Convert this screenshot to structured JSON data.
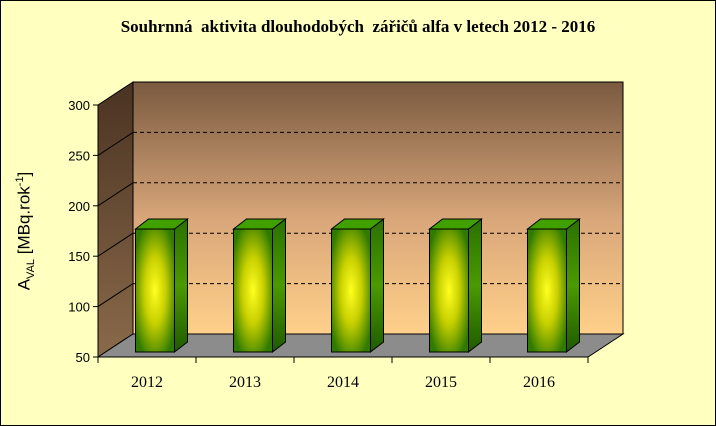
{
  "chart_data": {
    "type": "bar",
    "title": "Souhrnná  aktivita dlouhodobých  zářičů alfa v letech 2012 - 2016",
    "ylabel": {
      "base": "A",
      "sub": "VAL",
      "main": " [MBq.rok",
      "sup": "-1",
      "end": "]"
    },
    "xlabel": "",
    "categories": [
      "2012",
      "2013",
      "2014",
      "2015",
      "2016"
    ],
    "values": [
      172,
      172,
      172,
      172,
      172
    ],
    "ylim": [
      50,
      300
    ],
    "yticks": [
      "50",
      "100",
      "150",
      "200",
      "250",
      "300"
    ],
    "grid": true,
    "legend": "none",
    "colors": {
      "bar_center": "#ffff00",
      "bar_edge": "#2f7a00",
      "bar_side": "#2a6c00",
      "bar_top": "#3fa000",
      "floor": "#8c8c8c",
      "wall_top": "#7a5a40",
      "wall_bottom": "#ffd08a",
      "side_wall": "#5a3f2a",
      "background": "#ffffc0"
    }
  }
}
